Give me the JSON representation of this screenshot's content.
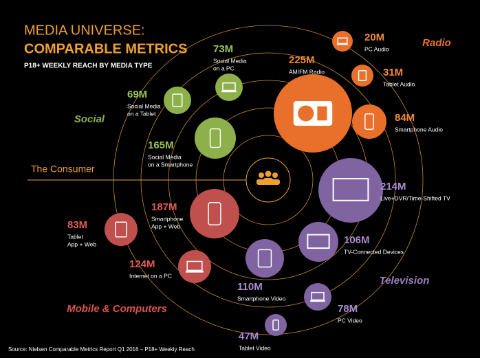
{
  "title": {
    "line1": "MEDIA UNIVERSE:",
    "line2": "COMPARABLE METRICS",
    "subtitle": "P18+ WEEKLY REACH BY MEDIA TYPE"
  },
  "center_label": "The Consumer",
  "groups": [
    {
      "label": "Radio"
    },
    {
      "label": "Social"
    },
    {
      "label": "Television"
    },
    {
      "label": "Mobile & Computers"
    }
  ],
  "nodes": [
    {
      "value": "20M",
      "label_lines": [
        "PC Audio"
      ]
    },
    {
      "value": "31M",
      "label_lines": [
        "Tablet Audio"
      ]
    },
    {
      "value": "225M",
      "label_lines": [
        "AM/FM Radio"
      ]
    },
    {
      "value": "84M",
      "label_lines": [
        "Smartphone Audio"
      ]
    },
    {
      "value": "214M",
      "label_lines": [
        "Live+DVR/Time-Shifted TV"
      ]
    },
    {
      "value": "106M",
      "label_lines": [
        "TV-Connected Devices"
      ]
    },
    {
      "value": "110M",
      "label_lines": [
        "Smartphone Video"
      ]
    },
    {
      "value": "78M",
      "label_lines": [
        "PC Video"
      ]
    },
    {
      "value": "47M",
      "label_lines": [
        "Tablet Video"
      ]
    },
    {
      "value": "73M",
      "label_lines": [
        "Social Media",
        "on a PC"
      ]
    },
    {
      "value": "69M",
      "label_lines": [
        "Social Media",
        "on a Tablet"
      ]
    },
    {
      "value": "165M",
      "label_lines": [
        "Social Media",
        "on a Smartphone"
      ]
    },
    {
      "value": "187M",
      "label_lines": [
        "Smartphone",
        "App + Web"
      ]
    },
    {
      "value": "83M",
      "label_lines": [
        "Tablet",
        "App + Web"
      ]
    },
    {
      "value": "124M",
      "label_lines": [
        "Internet on a PC"
      ]
    }
  ],
  "source": "Source: Nielsen Comparable Metrics Report Q1 2016 – P18+ Weekly Reach"
}
